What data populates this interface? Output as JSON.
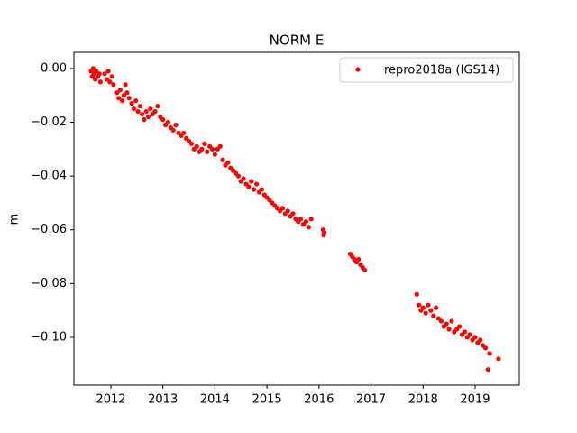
{
  "chart_data": {
    "type": "scatter",
    "title": "NORM E",
    "ylabel": "m",
    "x": [
      2011.62,
      2011.64,
      2011.66,
      2011.68,
      2011.7,
      2011.72,
      2011.75,
      2011.78,
      2011.8,
      2011.88,
      2011.92,
      2011.95,
      2011.98,
      2012.02,
      2012.05,
      2012.12,
      2012.15,
      2012.18,
      2012.22,
      2012.25,
      2012.28,
      2012.31,
      2012.35,
      2012.4,
      2012.44,
      2012.48,
      2012.52,
      2012.56,
      2012.6,
      2012.64,
      2012.68,
      2012.72,
      2012.76,
      2012.8,
      2012.85,
      2012.9,
      2012.95,
      2013.0,
      2013.05,
      2013.1,
      2013.15,
      2013.2,
      2013.25,
      2013.3,
      2013.35,
      2013.4,
      2013.45,
      2013.5,
      2013.55,
      2013.6,
      2013.65,
      2013.7,
      2013.75,
      2013.8,
      2013.85,
      2013.9,
      2013.95,
      2014.0,
      2014.05,
      2014.1,
      2014.15,
      2014.2,
      2014.25,
      2014.3,
      2014.35,
      2014.4,
      2014.45,
      2014.5,
      2014.55,
      2014.6,
      2014.65,
      2014.7,
      2014.75,
      2014.8,
      2014.85,
      2014.9,
      2014.95,
      2015.0,
      2015.05,
      2015.1,
      2015.15,
      2015.2,
      2015.25,
      2015.3,
      2015.35,
      2015.4,
      2015.45,
      2015.5,
      2015.55,
      2015.6,
      2015.65,
      2015.7,
      2015.75,
      2015.8,
      2015.85,
      2016.08,
      2016.09,
      2016.1,
      2016.6,
      2016.64,
      2016.68,
      2016.72,
      2016.76,
      2016.8,
      2016.84,
      2016.88,
      2017.88,
      2017.92,
      2017.96,
      2018.0,
      2018.05,
      2018.1,
      2018.15,
      2018.2,
      2018.25,
      2018.3,
      2018.35,
      2018.4,
      2018.45,
      2018.5,
      2018.55,
      2018.6,
      2018.65,
      2018.7,
      2018.75,
      2018.8,
      2018.85,
      2018.9,
      2018.95,
      2019.0,
      2019.05,
      2019.1,
      2019.15,
      2019.2,
      2019.25,
      2019.28,
      2019.45
    ],
    "series": [
      {
        "name": "repro2018a (IGS14)",
        "color": "#ff0000",
        "values": [
          -0.001,
          -0.003,
          0.0,
          -0.002,
          -0.004,
          -0.001,
          -0.003,
          -0.002,
          -0.005,
          -0.002,
          -0.004,
          -0.001,
          -0.005,
          -0.003,
          -0.006,
          -0.009,
          -0.011,
          -0.008,
          -0.012,
          -0.01,
          -0.006,
          -0.009,
          -0.011,
          -0.013,
          -0.015,
          -0.012,
          -0.016,
          -0.014,
          -0.017,
          -0.019,
          -0.016,
          -0.018,
          -0.015,
          -0.017,
          -0.016,
          -0.014,
          -0.018,
          -0.019,
          -0.021,
          -0.02,
          -0.022,
          -0.023,
          -0.021,
          -0.024,
          -0.025,
          -0.024,
          -0.026,
          -0.027,
          -0.028,
          -0.03,
          -0.029,
          -0.031,
          -0.03,
          -0.028,
          -0.031,
          -0.029,
          -0.03,
          -0.032,
          -0.03,
          -0.029,
          -0.034,
          -0.036,
          -0.035,
          -0.037,
          -0.038,
          -0.039,
          -0.04,
          -0.042,
          -0.041,
          -0.043,
          -0.044,
          -0.042,
          -0.045,
          -0.043,
          -0.046,
          -0.045,
          -0.047,
          -0.048,
          -0.049,
          -0.05,
          -0.051,
          -0.052,
          -0.053,
          -0.052,
          -0.054,
          -0.053,
          -0.055,
          -0.054,
          -0.056,
          -0.057,
          -0.056,
          -0.058,
          -0.057,
          -0.059,
          -0.056,
          -0.06,
          -0.062,
          -0.061,
          -0.069,
          -0.07,
          -0.071,
          -0.072,
          -0.071,
          -0.073,
          -0.074,
          -0.075,
          -0.084,
          -0.088,
          -0.09,
          -0.089,
          -0.091,
          -0.088,
          -0.09,
          -0.092,
          -0.089,
          -0.093,
          -0.094,
          -0.096,
          -0.095,
          -0.097,
          -0.094,
          -0.098,
          -0.097,
          -0.096,
          -0.099,
          -0.098,
          -0.1,
          -0.099,
          -0.101,
          -0.1,
          -0.102,
          -0.101,
          -0.103,
          -0.104,
          -0.112,
          -0.106,
          -0.108
        ]
      }
    ],
    "xlim": [
      2011.29,
      2019.85
    ],
    "ylim": [
      -0.1178,
      0.006
    ],
    "xticks": [
      2012,
      2013,
      2014,
      2015,
      2016,
      2017,
      2018,
      2019
    ],
    "yticks": [
      {
        "value": 0,
        "label": "0.00"
      },
      {
        "value": -0.02,
        "label": "−0.02"
      },
      {
        "value": -0.04,
        "label": "−0.04"
      },
      {
        "value": -0.06,
        "label": "−0.06"
      },
      {
        "value": -0.08,
        "label": "−0.08"
      },
      {
        "value": -0.1,
        "label": "−0.10"
      }
    ],
    "legend": "upper right"
  }
}
